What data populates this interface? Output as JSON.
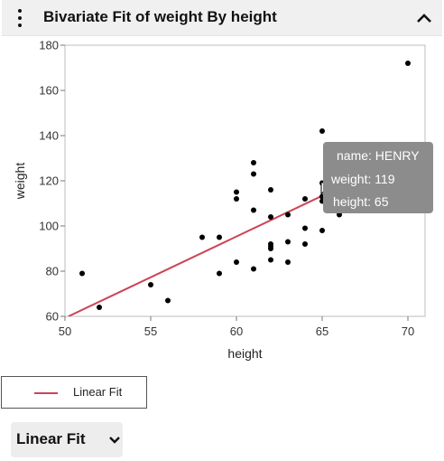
{
  "panel": {
    "title": "Bivariate Fit of weight By height",
    "menu_icon": "kebab-menu-icon",
    "collapse_icon": "chevron-up-icon"
  },
  "chart_data": {
    "type": "scatter",
    "title": "",
    "xlabel": "height",
    "ylabel": "weight",
    "xlim": [
      50,
      71
    ],
    "ylim": [
      60,
      180
    ],
    "x_ticks": [
      50,
      55,
      60,
      65,
      70
    ],
    "y_ticks": [
      60,
      80,
      100,
      120,
      140,
      160,
      180
    ],
    "grid": false,
    "points": [
      {
        "x": 51,
        "y": 79
      },
      {
        "x": 52,
        "y": 64
      },
      {
        "x": 55,
        "y": 74
      },
      {
        "x": 56,
        "y": 67
      },
      {
        "x": 58,
        "y": 95
      },
      {
        "x": 59,
        "y": 95
      },
      {
        "x": 59,
        "y": 79
      },
      {
        "x": 60,
        "y": 115
      },
      {
        "x": 60,
        "y": 112
      },
      {
        "x": 60,
        "y": 84
      },
      {
        "x": 61,
        "y": 128
      },
      {
        "x": 61,
        "y": 123
      },
      {
        "x": 61,
        "y": 107
      },
      {
        "x": 61,
        "y": 81
      },
      {
        "x": 62,
        "y": 116
      },
      {
        "x": 62,
        "y": 104
      },
      {
        "x": 62,
        "y": 92
      },
      {
        "x": 62,
        "y": 91
      },
      {
        "x": 62,
        "y": 90
      },
      {
        "x": 62,
        "y": 85
      },
      {
        "x": 63,
        "y": 105
      },
      {
        "x": 63,
        "y": 93
      },
      {
        "x": 63,
        "y": 84
      },
      {
        "x": 64,
        "y": 112
      },
      {
        "x": 64,
        "y": 99
      },
      {
        "x": 64,
        "y": 92
      },
      {
        "x": 65,
        "y": 142
      },
      {
        "x": 65,
        "y": 119
      },
      {
        "x": 65,
        "y": 113
      },
      {
        "x": 65,
        "y": 111
      },
      {
        "x": 65,
        "y": 98
      },
      {
        "x": 66,
        "y": 106
      },
      {
        "x": 66,
        "y": 105
      },
      {
        "x": 68,
        "y": 112
      },
      {
        "x": 69,
        "y": 113
      },
      {
        "x": 70,
        "y": 172
      }
    ],
    "fit_line": {
      "name": "Linear Fit",
      "color": "#cc4455",
      "x": [
        50.2,
        71
      ],
      "y": [
        60,
        135
      ]
    },
    "point_color": "#000000"
  },
  "tooltip": {
    "name_line": "name: HENRY",
    "weight_line": "weight: 119",
    "height_line": "height: 65"
  },
  "legend": {
    "entry_label": "Linear Fit"
  },
  "fit_menu": {
    "label": "Linear Fit",
    "icon": "chevron-down-icon"
  }
}
